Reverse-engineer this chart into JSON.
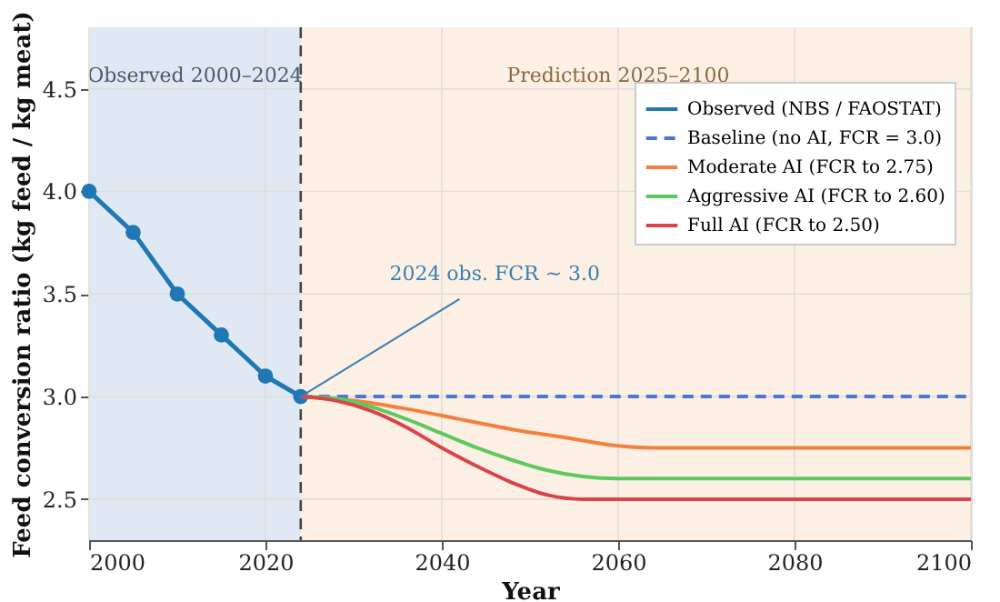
{
  "chart_data": {
    "type": "line",
    "xlabel": "Year",
    "ylabel": "Feed conversion ratio (kg feed / kg meat)",
    "xlim": [
      2000,
      2100
    ],
    "xticks": [
      2000,
      2020,
      2040,
      2060,
      2080,
      2100
    ],
    "ylim": [
      2.3,
      4.8
    ],
    "yticks": [
      2.5,
      {
        "value": 3,
        "label": "3.0"
      },
      3.5,
      {
        "value": 4,
        "label": "4.0"
      },
      4.5
    ],
    "grid": true,
    "legend": "top right",
    "series": [
      {
        "name": "Observed (NBS / FAOSTAT)",
        "color": "#1f77b4",
        "marker": "circle",
        "line_style": "solid",
        "x": [
          2000,
          2005,
          2010,
          2015,
          2020,
          2024
        ],
        "values": [
          4.0,
          3.8,
          3.5,
          3.3,
          3.1,
          3.0
        ]
      },
      {
        "name": "Baseline (no AI, FCR = 3.0)",
        "color": "#4878cf",
        "marker": "none",
        "line_style": "dashed",
        "x": [
          2024,
          2100
        ],
        "values": [
          3.0,
          3.0
        ]
      },
      {
        "name": "Moderate AI (FCR to 2.75)",
        "color": "#f47f3f",
        "marker": "none",
        "line_style": "solid",
        "x": [
          2024,
          2030,
          2036,
          2042,
          2048,
          2054,
          2060,
          2064,
          2100
        ],
        "values": [
          3.0,
          2.98,
          2.94,
          2.89,
          2.84,
          2.8,
          2.76,
          2.75,
          2.75
        ]
      },
      {
        "name": "Aggressive AI (FCR to 2.60)",
        "color": "#5ec95e",
        "marker": "none",
        "line_style": "solid",
        "x": [
          2024,
          2028,
          2032,
          2036,
          2040,
          2044,
          2048,
          2052,
          2056,
          2060,
          2100
        ],
        "values": [
          3.0,
          2.99,
          2.95,
          2.89,
          2.82,
          2.75,
          2.69,
          2.64,
          2.61,
          2.6,
          2.6
        ]
      },
      {
        "name": "Full AI (FCR to 2.50)",
        "color": "#d9434a",
        "marker": "none",
        "line_style": "solid",
        "x": [
          2024,
          2028,
          2032,
          2036,
          2040,
          2044,
          2048,
          2052,
          2056,
          2100
        ],
        "values": [
          3.0,
          2.98,
          2.93,
          2.85,
          2.75,
          2.66,
          2.58,
          2.52,
          2.5,
          2.5
        ]
      }
    ],
    "bands": [
      {
        "axis": "x",
        "from": 2000,
        "to": 2024,
        "label": "Observed  2000–2024",
        "color": "#dfe8f3"
      },
      {
        "axis": "x",
        "from": 2024,
        "to": 2100,
        "label": "Prediction  2025–2100",
        "color": "#fcf0e4"
      }
    ],
    "ref_lines": [
      {
        "axis": "x",
        "value": 2024,
        "color": "#444444",
        "line_style": "dashed"
      }
    ],
    "annotations": [
      {
        "text": "2024 obs. FCR ~ 3.0",
        "x": 2024,
        "y": 3.0
      }
    ]
  }
}
